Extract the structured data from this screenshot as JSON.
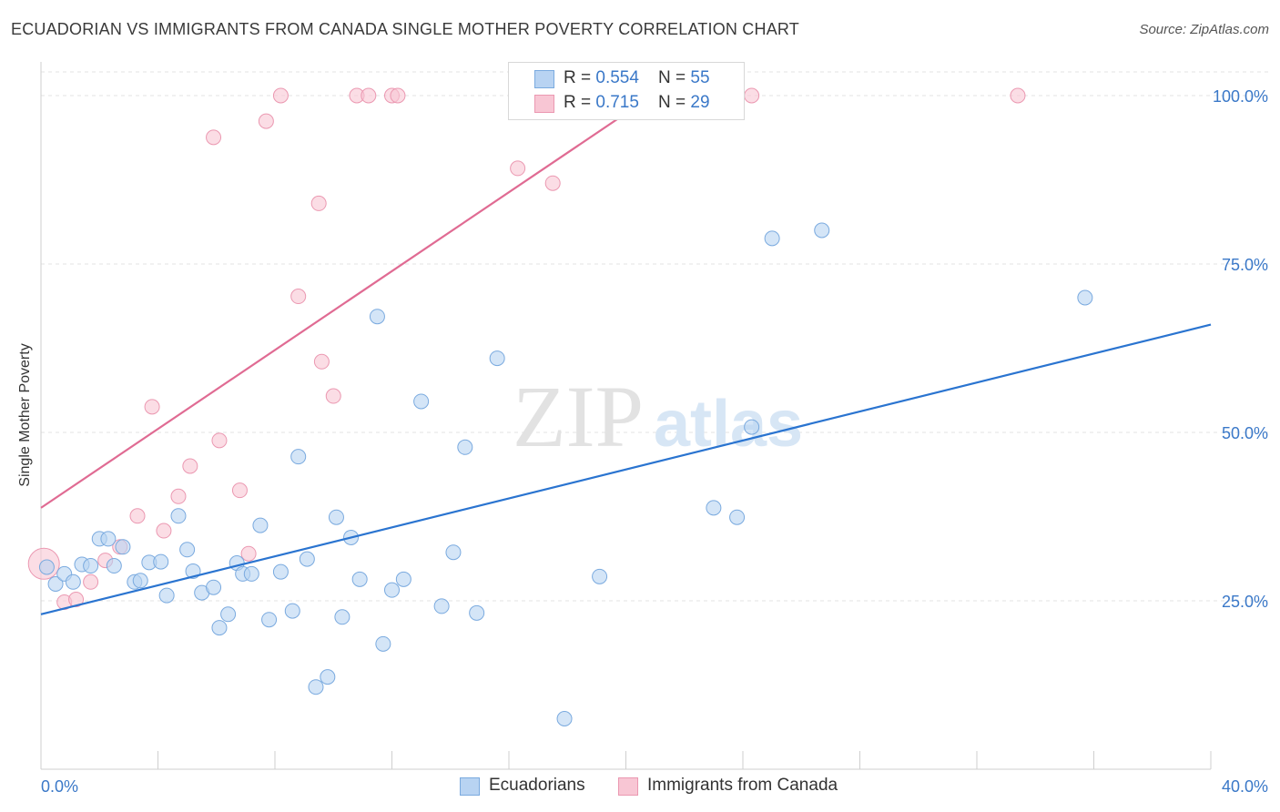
{
  "header": {
    "title": "ECUADORIAN VS IMMIGRANTS FROM CANADA SINGLE MOTHER POVERTY CORRELATION CHART",
    "source": "Source: ZipAtlas.com"
  },
  "watermark": {
    "part1": "ZIP",
    "part2": "atlas"
  },
  "legend_top": {
    "rows": [
      {
        "r_label": "R = ",
        "r_value": "0.554",
        "n_label": "N = ",
        "n_value": "55"
      },
      {
        "r_label": "R = ",
        "r_value": "0.715",
        "n_label": "N = ",
        "n_value": "29"
      }
    ]
  },
  "legend_bottom": {
    "items": [
      "Ecuadorians",
      "Immigrants from Canada"
    ]
  },
  "colors": {
    "blue_fill": "#b8d3f2",
    "blue_stroke": "#7aaadf",
    "blue_line": "#2a74d0",
    "pink_fill": "#f8c6d4",
    "pink_stroke": "#eb98b1",
    "pink_line": "#e06b93",
    "tick_label": "#3a78c8"
  },
  "chart_data": {
    "type": "scatter",
    "title": "ECUADORIAN VS IMMIGRANTS FROM CANADA SINGLE MOTHER POVERTY CORRELATION CHART",
    "xlabel": "",
    "ylabel": "Single Mother Poverty",
    "xlim": [
      0,
      40
    ],
    "ylim": [
      0,
      105
    ],
    "x_tick_labels": [
      {
        "value": 0,
        "label": "0.0%"
      },
      {
        "value": 40,
        "label": "40.0%"
      }
    ],
    "y_tick_labels": [
      {
        "value": 25,
        "label": "25.0%"
      },
      {
        "value": 50,
        "label": "50.0%"
      },
      {
        "value": 75,
        "label": "75.0%"
      },
      {
        "value": 100,
        "label": "100.0%"
      }
    ],
    "x_minor_ticks": [
      0,
      4,
      8,
      12,
      16,
      20,
      24,
      28,
      32,
      36,
      40
    ],
    "grid": true,
    "series": [
      {
        "name": "Ecuadorians",
        "color": "#b8d3f2",
        "points": [
          [
            0.2,
            30.0
          ],
          [
            0.5,
            27.5
          ],
          [
            0.8,
            29.0
          ],
          [
            1.1,
            27.8
          ],
          [
            1.4,
            30.4
          ],
          [
            1.7,
            30.2
          ],
          [
            2.0,
            34.2
          ],
          [
            2.3,
            34.2
          ],
          [
            2.5,
            30.2
          ],
          [
            2.8,
            33.0
          ],
          [
            3.2,
            27.8
          ],
          [
            3.4,
            28.0
          ],
          [
            3.7,
            30.7
          ],
          [
            4.1,
            30.8
          ],
          [
            4.3,
            25.8
          ],
          [
            4.7,
            37.6
          ],
          [
            5.0,
            32.6
          ],
          [
            5.2,
            29.4
          ],
          [
            5.5,
            26.2
          ],
          [
            5.9,
            27.0
          ],
          [
            6.1,
            21.0
          ],
          [
            6.4,
            23.0
          ],
          [
            6.7,
            30.6
          ],
          [
            6.9,
            29.0
          ],
          [
            7.2,
            29.0
          ],
          [
            7.5,
            36.2
          ],
          [
            7.8,
            22.2
          ],
          [
            8.2,
            29.3
          ],
          [
            8.6,
            23.5
          ],
          [
            8.8,
            46.4
          ],
          [
            9.1,
            31.2
          ],
          [
            9.4,
            12.2
          ],
          [
            9.8,
            13.7
          ],
          [
            10.1,
            37.4
          ],
          [
            10.3,
            22.6
          ],
          [
            10.6,
            34.4
          ],
          [
            10.9,
            28.2
          ],
          [
            11.5,
            67.2
          ],
          [
            11.7,
            18.6
          ],
          [
            12.0,
            26.6
          ],
          [
            12.4,
            28.2
          ],
          [
            13.0,
            54.6
          ],
          [
            13.7,
            24.2
          ],
          [
            14.1,
            32.2
          ],
          [
            14.5,
            47.8
          ],
          [
            14.9,
            23.2
          ],
          [
            15.6,
            61.0
          ],
          [
            17.9,
            7.5
          ],
          [
            19.1,
            28.6
          ],
          [
            23.0,
            38.8
          ],
          [
            23.8,
            37.4
          ],
          [
            24.3,
            50.8
          ],
          [
            25.0,
            78.8
          ],
          [
            26.7,
            80.0
          ],
          [
            35.7,
            70.0
          ]
        ],
        "trendline": {
          "x": [
            0,
            40
          ],
          "y": [
            23.0,
            66.0
          ]
        }
      },
      {
        "name": "Immigrants from Canada",
        "color": "#f8c6d4",
        "points": [
          [
            0.1,
            30.5
          ],
          [
            0.8,
            24.8
          ],
          [
            1.2,
            25.2
          ],
          [
            1.7,
            27.8
          ],
          [
            2.2,
            31.0
          ],
          [
            2.7,
            33.0
          ],
          [
            3.3,
            37.6
          ],
          [
            3.8,
            53.8
          ],
          [
            4.2,
            35.4
          ],
          [
            4.7,
            40.5
          ],
          [
            5.1,
            45.0
          ],
          [
            5.9,
            93.8
          ],
          [
            6.1,
            48.8
          ],
          [
            6.8,
            41.4
          ],
          [
            7.1,
            32.0
          ],
          [
            7.7,
            96.2
          ],
          [
            8.2,
            100.0
          ],
          [
            8.8,
            70.2
          ],
          [
            9.5,
            84.0
          ],
          [
            9.6,
            60.5
          ],
          [
            10.0,
            55.4
          ],
          [
            10.8,
            100.0
          ],
          [
            11.2,
            100.0
          ],
          [
            12.0,
            100.0
          ],
          [
            12.2,
            100.0
          ],
          [
            16.3,
            89.2
          ],
          [
            17.5,
            87.0
          ],
          [
            24.3,
            100.0
          ],
          [
            33.4,
            100.0
          ]
        ],
        "trendline": {
          "x": [
            0,
            20.9
          ],
          "y": [
            38.8,
            100.0
          ]
        }
      }
    ]
  }
}
